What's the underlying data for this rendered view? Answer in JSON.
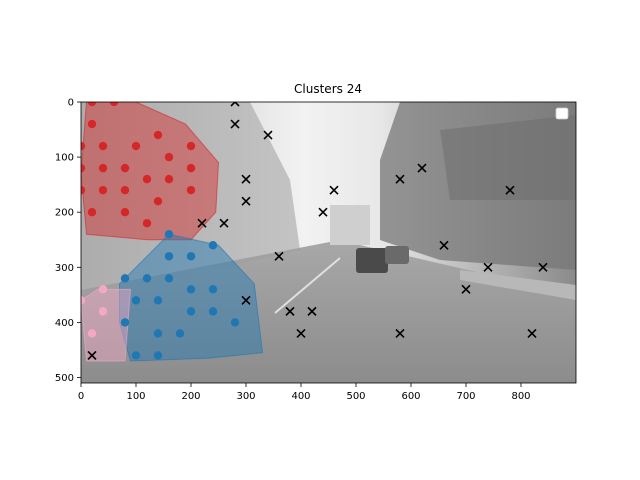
{
  "chart_data": {
    "type": "scatter",
    "title": "Clusters 24",
    "xlabel": "",
    "ylabel": "",
    "xlim": [
      0,
      900
    ],
    "ylim": [
      510,
      0
    ],
    "y_inverted": true,
    "xticks": [
      0,
      100,
      200,
      300,
      400,
      500,
      600,
      700,
      800
    ],
    "yticks": [
      0,
      100,
      200,
      300,
      400,
      500
    ],
    "grid": false,
    "legend": "top-right (empty)",
    "background": "grayscale street photograph",
    "series": [
      {
        "marker": "circle",
        "color": "#d62728",
        "points": [
          [
            20,
            0
          ],
          [
            60,
            0
          ],
          [
            20,
            40
          ],
          [
            0,
            80
          ],
          [
            40,
            80
          ],
          [
            100,
            80
          ],
          [
            200,
            80
          ],
          [
            140,
            60
          ],
          [
            160,
            100
          ],
          [
            0,
            120
          ],
          [
            40,
            120
          ],
          [
            80,
            120
          ],
          [
            120,
            140
          ],
          [
            160,
            140
          ],
          [
            200,
            120
          ],
          [
            0,
            160
          ],
          [
            40,
            160
          ],
          [
            80,
            160
          ],
          [
            140,
            180
          ],
          [
            200,
            160
          ],
          [
            20,
            200
          ],
          [
            80,
            200
          ],
          [
            120,
            220
          ]
        ],
        "hull": [
          [
            10,
            0
          ],
          [
            70,
            0
          ],
          [
            100,
            0
          ],
          [
            190,
            40
          ],
          [
            250,
            110
          ],
          [
            245,
            200
          ],
          [
            200,
            250
          ],
          [
            120,
            250
          ],
          [
            10,
            240
          ],
          [
            0,
            130
          ]
        ]
      },
      {
        "marker": "circle",
        "color": "#1f77b4",
        "points": [
          [
            160,
            240
          ],
          [
            240,
            260
          ],
          [
            160,
            280
          ],
          [
            200,
            280
          ],
          [
            80,
            320
          ],
          [
            120,
            320
          ],
          [
            160,
            320
          ],
          [
            200,
            340
          ],
          [
            240,
            340
          ],
          [
            100,
            360
          ],
          [
            140,
            360
          ],
          [
            200,
            380
          ],
          [
            240,
            380
          ],
          [
            80,
            400
          ],
          [
            280,
            400
          ],
          [
            140,
            420
          ],
          [
            180,
            420
          ],
          [
            100,
            460
          ],
          [
            140,
            460
          ]
        ],
        "hull": [
          [
            160,
            240
          ],
          [
            250,
            260
          ],
          [
            315,
            330
          ],
          [
            330,
            455
          ],
          [
            230,
            465
          ],
          [
            90,
            470
          ],
          [
            70,
            400
          ],
          [
            70,
            330
          ]
        ]
      },
      {
        "marker": "circle",
        "color": "#f4a8c6",
        "points": [
          [
            40,
            340
          ],
          [
            0,
            360
          ],
          [
            40,
            380
          ],
          [
            20,
            420
          ]
        ],
        "hull": [
          [
            30,
            340
          ],
          [
            90,
            340
          ],
          [
            80,
            470
          ],
          [
            10,
            470
          ],
          [
            0,
            360
          ]
        ]
      },
      {
        "marker": "x",
        "color": "#000000",
        "points": [
          [
            280,
            0
          ],
          [
            280,
            40
          ],
          [
            340,
            60
          ],
          [
            300,
            140
          ],
          [
            300,
            180
          ],
          [
            460,
            160
          ],
          [
            580,
            140
          ],
          [
            620,
            120
          ],
          [
            780,
            160
          ],
          [
            440,
            200
          ],
          [
            220,
            220
          ],
          [
            260,
            220
          ],
          [
            360,
            280
          ],
          [
            660,
            260
          ],
          [
            740,
            300
          ],
          [
            840,
            300
          ],
          [
            700,
            340
          ],
          [
            300,
            360
          ],
          [
            380,
            380
          ],
          [
            420,
            380
          ],
          [
            400,
            420
          ],
          [
            580,
            420
          ],
          [
            820,
            420
          ],
          [
            20,
            460
          ]
        ]
      }
    ]
  }
}
